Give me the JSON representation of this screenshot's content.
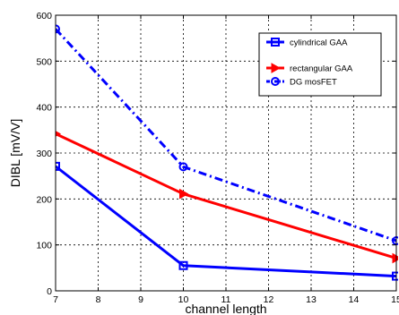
{
  "chart_data": {
    "type": "line",
    "title": "",
    "xlabel": "channel length",
    "ylabel": "DIBL [mV/V]",
    "xlim": [
      7,
      15
    ],
    "ylim": [
      0,
      600
    ],
    "xticks": [
      7,
      8,
      9,
      10,
      11,
      12,
      13,
      14,
      15
    ],
    "yticks": [
      0,
      100,
      200,
      300,
      400,
      500,
      600
    ],
    "xtick_labels": [
      "7",
      "8",
      "9",
      "10",
      "11",
      "12",
      "13",
      "14",
      "15"
    ],
    "ytick_labels": [
      "0",
      "100",
      "200",
      "300",
      "400",
      "500",
      "600"
    ],
    "grid": true,
    "legend_position": "top-right",
    "series": [
      {
        "name": "cylindrical GAA",
        "color": "#0000ff",
        "line_style": "solid",
        "marker": "square",
        "x": [
          7,
          10,
          15
        ],
        "y": [
          271,
          55,
          32
        ]
      },
      {
        "name": "rectangular GAA",
        "color": "#ff0000",
        "line_style": "solid",
        "marker": "triangle-right",
        "x": [
          7,
          10,
          15
        ],
        "y": [
          342,
          211,
          71
        ]
      },
      {
        "name": "DG mosFET",
        "color": "#0000ff",
        "line_style": "dashdot",
        "marker": "circle",
        "x": [
          7,
          10,
          15
        ],
        "y": [
          570,
          270,
          109
        ]
      }
    ]
  }
}
